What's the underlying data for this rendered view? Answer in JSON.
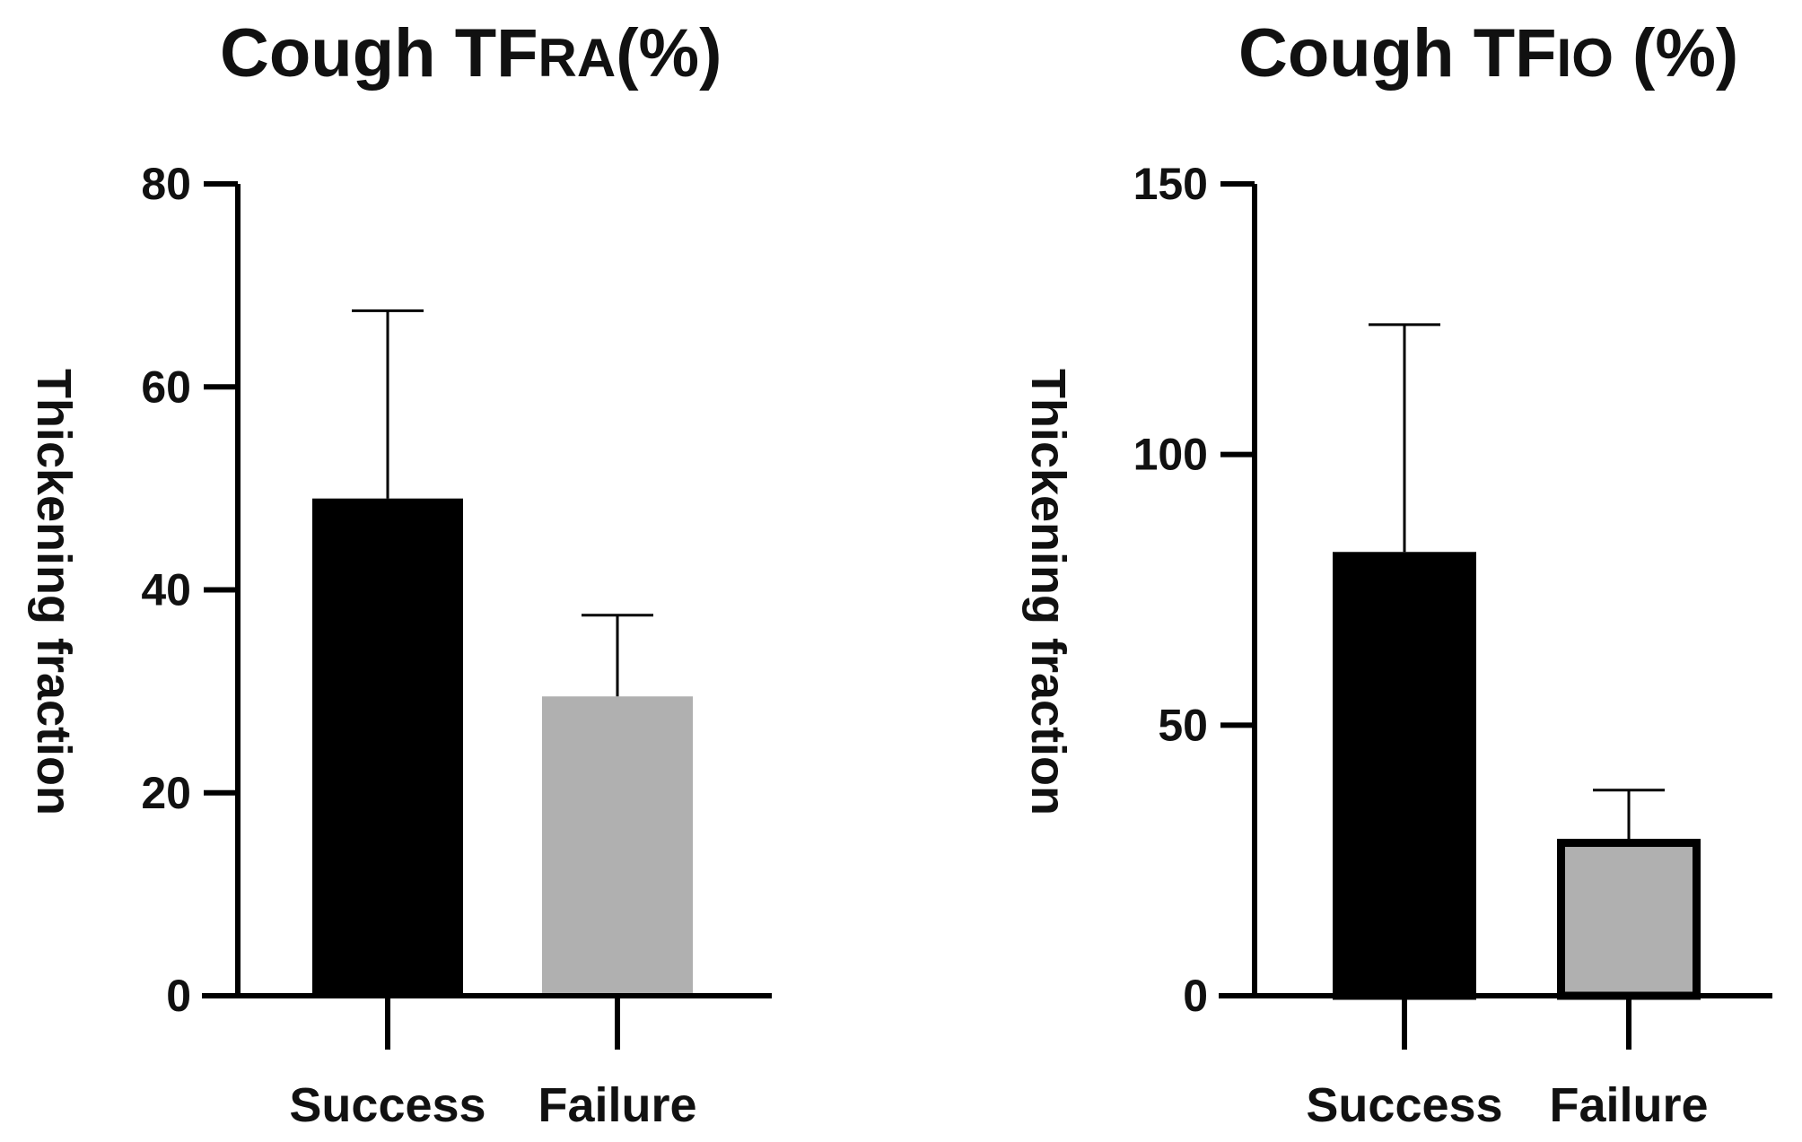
{
  "chart_data": [
    {
      "type": "bar",
      "title": "Cough TF",
      "title_subscript": "RA",
      "title_suffix": "(%)",
      "xlabel": "",
      "ylabel": "Thickening fraction",
      "categories": [
        "Success",
        "Failure"
      ],
      "values": [
        49,
        29.5
      ],
      "error_upper": [
        67.5,
        37.5
      ],
      "ylim": [
        0,
        80
      ],
      "yticks": [
        0,
        20,
        40,
        60,
        80
      ],
      "bar_colors": [
        "#000000",
        "#b0b0b0"
      ],
      "bar_outline": false,
      "grid": false,
      "legend": "none"
    },
    {
      "type": "bar",
      "title": "Cough TF",
      "title_subscript": "IO",
      "title_suffix": " (%)",
      "xlabel": "",
      "ylabel": "Thickening fraction",
      "categories": [
        "Success",
        "Failure"
      ],
      "values": [
        82,
        29
      ],
      "error_upper": [
        124,
        38
      ],
      "ylim": [
        0,
        150
      ],
      "yticks": [
        0,
        50,
        100,
        150
      ],
      "bar_colors": [
        "#000000",
        "#b0b0b0"
      ],
      "bar_outline": true,
      "grid": false,
      "legend": "none"
    }
  ]
}
